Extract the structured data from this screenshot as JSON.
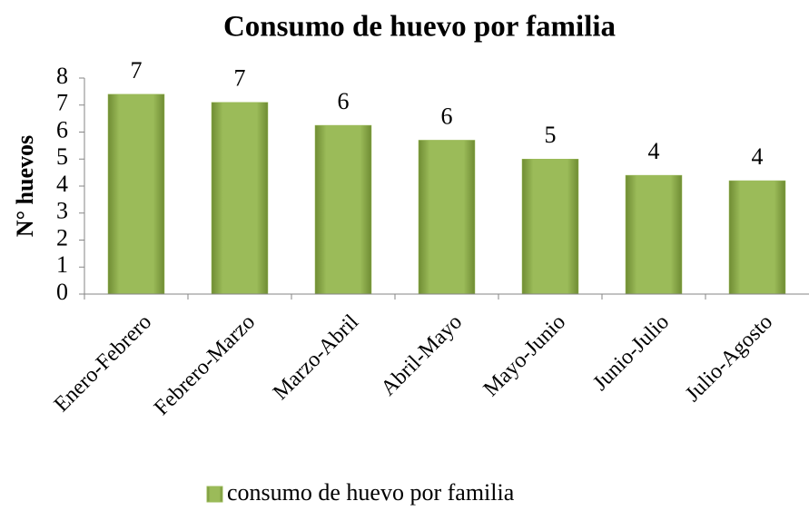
{
  "chart_data": {
    "type": "bar",
    "title": "Consumo de huevo por familia",
    "y_label": "N° huevos",
    "categories": [
      "Enero-Febrero",
      "Febrero-Marzo",
      "Marzo-Abril",
      "Abril-Mayo",
      "Mayo-Junio",
      "Junio-Julio",
      "Julio-Agosto"
    ],
    "series": [
      {
        "name": "consumo de huevo por familia",
        "color": "#9bbb59",
        "values": [
          7.4,
          7.1,
          6.25,
          5.7,
          5.0,
          4.4,
          4.2
        ],
        "value_labels": [
          "7",
          "7",
          "6",
          "6",
          "5",
          "4",
          "4"
        ]
      }
    ],
    "ylim": [
      0,
      8
    ],
    "yticks": [
      0,
      1,
      2,
      3,
      4,
      5,
      6,
      7,
      8
    ],
    "legend": "bottom"
  }
}
